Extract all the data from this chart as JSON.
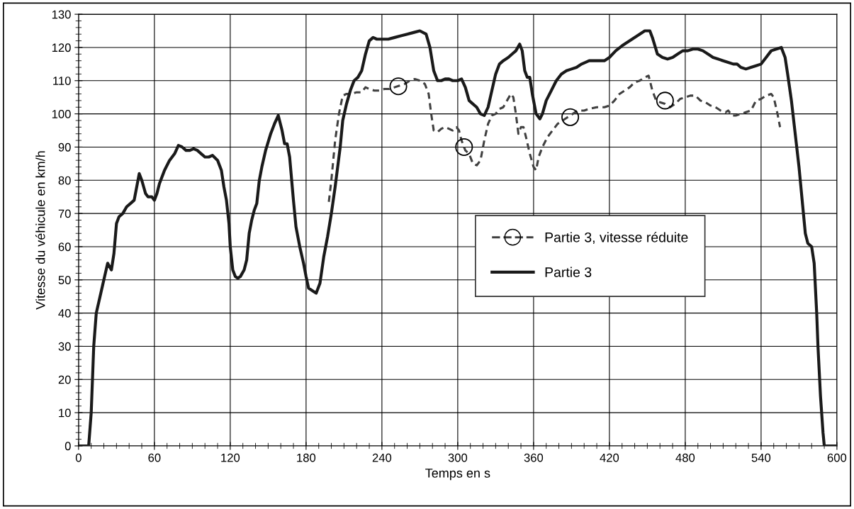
{
  "chart_data": {
    "type": "line",
    "xlabel": "Temps en s",
    "ylabel": "Vitesse du véhicule en km/h",
    "xlim": [
      0,
      600
    ],
    "xticks": [
      0,
      60,
      120,
      180,
      240,
      300,
      360,
      420,
      480,
      540,
      600
    ],
    "ylim": [
      0,
      130
    ],
    "yticks": [
      0,
      10,
      20,
      30,
      40,
      50,
      60,
      70,
      80,
      90,
      100,
      110,
      120,
      130
    ],
    "grid": true,
    "legend": "center right",
    "series": [
      {
        "name": "Partie 3, vitesse réduite",
        "color": "#404040",
        "line_style": "dashed",
        "marker": "none",
        "x": [
          198,
          200,
          203,
          206,
          209,
          212,
          216,
          220,
          224,
          227,
          230,
          234,
          238,
          242,
          246,
          250,
          254,
          258,
          262,
          266,
          270,
          274,
          277,
          279,
          281,
          284,
          287,
          290,
          293,
          296,
          299,
          301,
          303,
          306,
          309,
          312,
          315,
          318,
          321,
          324,
          327,
          330,
          333,
          336,
          339,
          342,
          344,
          346,
          348,
          350,
          352,
          354,
          357,
          360,
          362,
          364,
          367,
          371,
          375,
          379,
          383,
          387,
          391,
          395,
          400,
          404,
          410,
          416,
          420,
          424,
          428,
          432,
          436,
          440,
          444,
          448,
          451,
          454,
          457,
          460,
          464,
          468,
          472,
          476,
          480,
          484,
          488,
          492,
          496,
          500,
          504,
          508,
          512,
          514,
          517,
          520,
          524,
          528,
          532,
          536,
          540,
          544,
          548,
          550,
          553,
          555
        ],
        "values": [
          73.5,
          80,
          92,
          100,
          105.5,
          106,
          106,
          106.5,
          106.5,
          108,
          107.5,
          107,
          107,
          107.5,
          107.5,
          108,
          108.5,
          109,
          110,
          110.5,
          110,
          109,
          106,
          100,
          95,
          94.5,
          95.5,
          96,
          95.5,
          95,
          96,
          95,
          92,
          89,
          88,
          85,
          84.5,
          86,
          92,
          97,
          99.5,
          100,
          101.5,
          102,
          104,
          106,
          105,
          100,
          94,
          96,
          96,
          93,
          88,
          84,
          83,
          87,
          90,
          93,
          95,
          97,
          98,
          99,
          100,
          101,
          101,
          101.5,
          102,
          102,
          102.5,
          104,
          106,
          107,
          108,
          109.5,
          110,
          111,
          111.5,
          107,
          104,
          103.5,
          103,
          102,
          103,
          104.5,
          105,
          105.5,
          105.5,
          104,
          103.5,
          102.5,
          102,
          101,
          100.5,
          101,
          99.5,
          99.5,
          100,
          100.5,
          101,
          104,
          104.5,
          105.5,
          106,
          105,
          100,
          96
        ]
      },
      {
        "type": "scatter",
        "color": "#000000",
        "marker": "circle",
        "x": [
          253,
          305,
          389,
          464
        ],
        "values": [
          108.3,
          90,
          99,
          104
        ]
      },
      {
        "name": "Partie 3",
        "color": "#1a1a1a",
        "line_style": "solid",
        "marker": "none",
        "x": [
          0,
          5,
          8,
          10,
          12,
          14,
          17,
          20,
          23,
          26,
          28,
          30,
          32,
          35,
          38,
          41,
          44,
          47,
          48,
          50,
          53,
          55,
          58,
          60,
          62,
          64,
          68,
          72,
          76,
          79,
          82,
          85,
          88,
          91,
          94,
          97,
          100,
          103,
          106,
          110,
          113,
          115,
          117,
          119,
          120,
          122,
          124,
          126,
          128,
          131,
          133,
          135,
          137,
          139,
          141,
          143,
          145,
          148,
          152,
          155,
          158,
          161,
          163,
          165,
          167,
          170,
          172,
          175,
          178,
          180,
          182,
          186,
          188,
          191,
          194,
          197,
          200,
          203,
          207,
          209,
          212,
          215,
          218,
          221,
          224,
          227,
          230,
          233,
          236,
          240,
          245,
          250,
          255,
          260,
          265,
          270,
          275,
          278,
          281,
          284,
          287,
          290,
          293,
          296,
          300,
          303,
          306,
          309,
          312,
          315,
          318,
          321,
          324,
          327,
          330,
          333,
          336,
          340,
          343,
          346,
          349,
          351,
          353,
          355,
          357,
          359,
          362,
          365,
          367,
          370,
          374,
          378,
          382,
          386,
          390,
          394,
          398,
          404,
          410,
          416,
          420,
          425,
          430,
          436,
          442,
          448,
          452,
          454,
          458,
          462,
          466,
          470,
          474,
          478,
          482,
          486,
          490,
          494,
          498,
          502,
          506,
          510,
          514,
          518,
          521,
          524,
          528,
          532,
          536,
          540,
          544,
          548,
          552,
          556,
          559,
          561,
          564,
          567,
          570,
          573,
          575,
          577,
          580,
          582,
          584,
          585,
          587,
          589,
          590,
          600
        ],
        "values": [
          0,
          0,
          0,
          10,
          30,
          40,
          45,
          50,
          55,
          53,
          58,
          67,
          69,
          70,
          72,
          73,
          74,
          80,
          82,
          80,
          76,
          75,
          75,
          74,
          76,
          79,
          83,
          86,
          88,
          90.5,
          90,
          89,
          89,
          89.5,
          89,
          88,
          87,
          87,
          87.5,
          86,
          83,
          78,
          74,
          67,
          60,
          53,
          51,
          50.5,
          51,
          53,
          56,
          64,
          68,
          71,
          73,
          80,
          84,
          89,
          94,
          97,
          99.5,
          95,
          91,
          91,
          87,
          74,
          66,
          60,
          55,
          51,
          47.5,
          46.5,
          46,
          49,
          57,
          63,
          70,
          78,
          90,
          98,
          103,
          107,
          110,
          111,
          113,
          118,
          122,
          123,
          122.5,
          122.5,
          122.5,
          123,
          123.5,
          124,
          124.5,
          125,
          124,
          120,
          113,
          110,
          110,
          110.5,
          110.5,
          110,
          110,
          110.5,
          108,
          104,
          103,
          102,
          100,
          99.5,
          102,
          107,
          112,
          115,
          116,
          117,
          118,
          119,
          121,
          119,
          113,
          111,
          111,
          106,
          100,
          98.5,
          100,
          104,
          107,
          110,
          112,
          113,
          113.5,
          114,
          115,
          116,
          116,
          116,
          117,
          119,
          120.5,
          122,
          123.5,
          125,
          125,
          123,
          118,
          117,
          116.5,
          117,
          118,
          119,
          119,
          119.5,
          119.5,
          119,
          118,
          117,
          116.5,
          116,
          115.5,
          115,
          115,
          114,
          113.5,
          114,
          114.5,
          115,
          117,
          119,
          119.5,
          120,
          117,
          112,
          104,
          94,
          84,
          72,
          64,
          61,
          60,
          55,
          40,
          30,
          15,
          4,
          0,
          0
        ]
      }
    ]
  }
}
